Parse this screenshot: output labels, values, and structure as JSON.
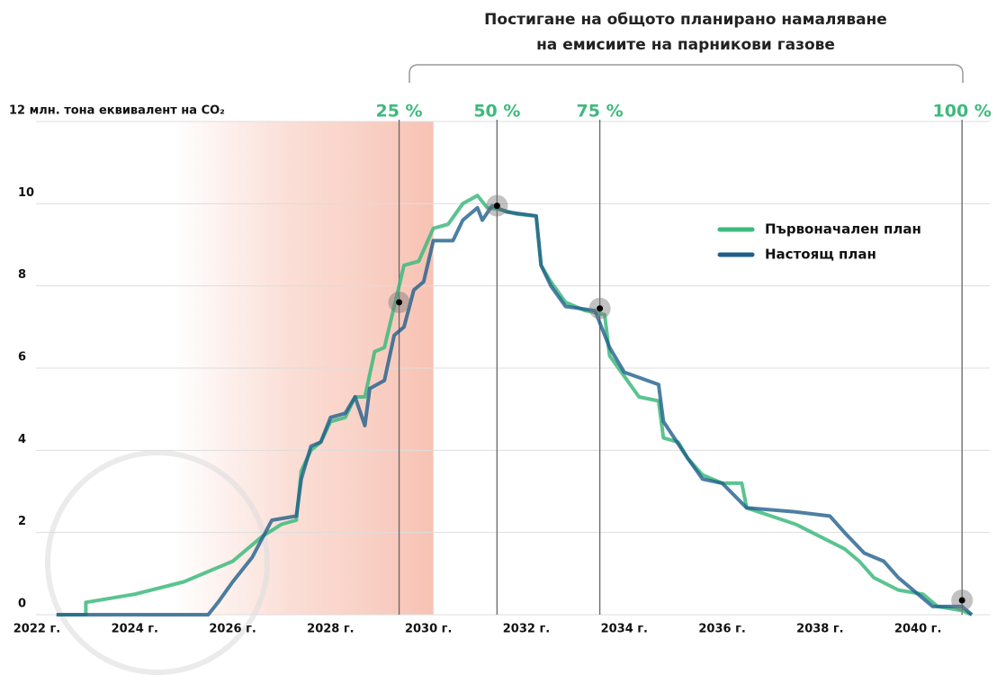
{
  "chart_data": {
    "type": "line",
    "title": [
      "Постигане на общото планирано намаляване",
      "на емисиите на парникови газове"
    ],
    "xlim": [
      2021.8,
      2041.3
    ],
    "ylim": [
      0,
      12
    ],
    "xticks": [
      {
        "value": 2022,
        "label": "2022 г."
      },
      {
        "value": 2024,
        "label": "2024 г."
      },
      {
        "value": 2026,
        "label": "2026 г."
      },
      {
        "value": 2028,
        "label": "2028 г."
      },
      {
        "value": 2030,
        "label": "2030 г."
      },
      {
        "value": 2032,
        "label": "2032 г."
      },
      {
        "value": 2034,
        "label": "2034 г."
      },
      {
        "value": 2036,
        "label": "2036 г."
      },
      {
        "value": 2038,
        "label": "2038 г."
      },
      {
        "value": 2040,
        "label": "2040 г."
      }
    ],
    "yticks": [
      0,
      2,
      4,
      6,
      8,
      10,
      {
        "value": 12,
        "label": "12 млн. тона еквивалент на CO₂"
      }
    ],
    "grid": true,
    "legend": "upper right",
    "shaded_region": [
      2024.8,
      2030.1
    ],
    "milestones": [
      {
        "label": "25 %",
        "x": 2029.4,
        "y": 7.6
      },
      {
        "label": "50 %",
        "x": 2031.4,
        "y": 9.95
      },
      {
        "label": "75 %",
        "x": 2033.5,
        "y": 7.45
      },
      {
        "label": "100 %",
        "x": 2040.9,
        "y": 0.35
      }
    ],
    "series": [
      {
        "name": "Първоначален план",
        "color": "#3dba7c",
        "x": [
          2022.4,
          2023.0,
          2023.0,
          2024,
          2025,
          2026,
          2026.6,
          2027.0,
          2027.3,
          2027.4,
          2027.6,
          2027.8,
          2028,
          2028.3,
          2028.5,
          2028.7,
          2028.9,
          2029.1,
          2029.3,
          2029.5,
          2029.8,
          2030.1,
          2030.4,
          2030.7,
          2031.0,
          2031.2,
          2031.5,
          2031.8,
          2032.2,
          2032.3,
          2032.5,
          2032.8,
          2033.2,
          2033.6,
          2033.7,
          2034.0,
          2034.3,
          2034.7,
          2034.8,
          2035.1,
          2035.3,
          2035.6,
          2036,
          2036.4,
          2036.5,
          2037,
          2037.5,
          2038,
          2038.5,
          2038.8,
          2039.1,
          2039.6,
          2040.1,
          2040.4,
          2040.9,
          2041.1
        ],
        "values": [
          0,
          0,
          0.3,
          0.5,
          0.8,
          1.3,
          1.9,
          2.2,
          2.3,
          3.5,
          4.0,
          4.2,
          4.7,
          4.8,
          5.3,
          5.3,
          6.4,
          6.5,
          7.5,
          8.5,
          8.6,
          9.4,
          9.5,
          10.0,
          10.2,
          9.9,
          9.85,
          9.75,
          9.7,
          8.5,
          8.1,
          7.6,
          7.4,
          7.3,
          6.3,
          5.8,
          5.3,
          5.2,
          4.3,
          4.2,
          3.8,
          3.4,
          3.2,
          3.2,
          2.6,
          2.4,
          2.2,
          1.9,
          1.6,
          1.3,
          0.9,
          0.6,
          0.5,
          0.2,
          0.1,
          0
        ]
      },
      {
        "name": "Настоящ план",
        "color": "#1f5f8b",
        "x": [
          2022.4,
          2025.5,
          2025.7,
          2026,
          2026.4,
          2026.8,
          2027.3,
          2027.4,
          2027.6,
          2027.8,
          2028.0,
          2028.3,
          2028.5,
          2028.7,
          2028.8,
          2029.1,
          2029.3,
          2029.5,
          2029.7,
          2029.9,
          2030.1,
          2030.5,
          2030.7,
          2031.0,
          2031.1,
          2031.3,
          2031.6,
          2032.2,
          2032.3,
          2032.5,
          2032.8,
          2033.4,
          2033.7,
          2034,
          2034.7,
          2034.8,
          2035.3,
          2035.6,
          2036,
          2036.5,
          2037.5,
          2038.2,
          2038.5,
          2038.9,
          2039.3,
          2039.6,
          2040,
          2040.3,
          2040.9,
          2041.1
        ],
        "values": [
          0,
          0,
          0.3,
          0.8,
          1.4,
          2.3,
          2.4,
          3.3,
          4.1,
          4.2,
          4.8,
          4.9,
          5.3,
          4.6,
          5.5,
          5.7,
          6.8,
          7.0,
          7.9,
          8.1,
          9.1,
          9.1,
          9.6,
          9.9,
          9.6,
          9.95,
          9.8,
          9.7,
          8.5,
          8.0,
          7.5,
          7.4,
          6.5,
          5.9,
          5.6,
          4.7,
          3.8,
          3.3,
          3.2,
          2.6,
          2.5,
          2.4,
          2.0,
          1.5,
          1.3,
          0.9,
          0.5,
          0.2,
          0.2,
          0
        ]
      }
    ]
  }
}
